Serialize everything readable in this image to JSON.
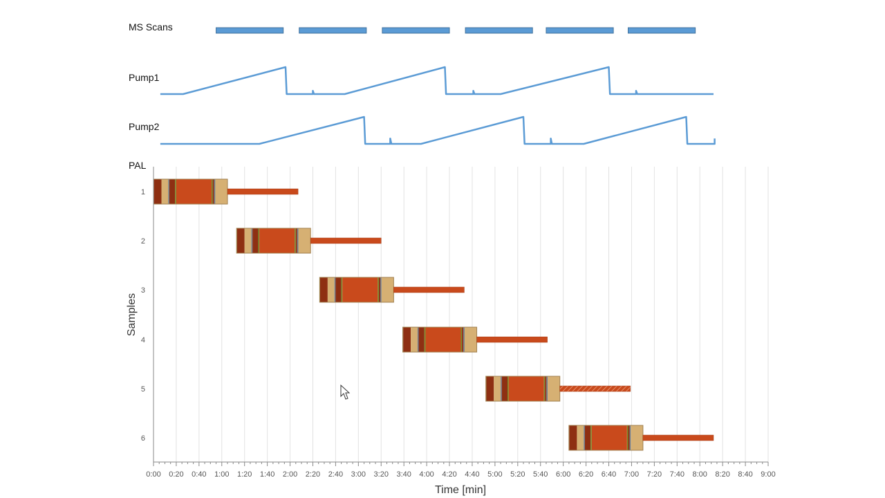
{
  "labels": {
    "ms_scans": "MS Scans",
    "pump1": "Pump1",
    "pump2": "Pump2",
    "pal": "PAL"
  },
  "colors": {
    "line": "#5b9bd5",
    "scan_fill": "#5b9bd5",
    "scan_border": "#41719c",
    "dark_red": "#8e2f12",
    "tan": "#d6b073",
    "orange": "#c94a1c",
    "green": "#7a8c2a",
    "gray": "#6f7b8a",
    "grid": "#e2e2e2",
    "axis": "#888888"
  },
  "chart_data": {
    "type": "gantt",
    "xlabel": "Time [min]",
    "ylabel": "Samples",
    "xlim": [
      0,
      540
    ],
    "x_tick_labels": [
      "0:00",
      "0:20",
      "0:40",
      "1:00",
      "1:20",
      "1:40",
      "2:00",
      "2:20",
      "2:40",
      "3:00",
      "3:20",
      "3:40",
      "4:00",
      "4:20",
      "4:40",
      "5:00",
      "5:20",
      "5:40",
      "6:00",
      "6:20",
      "6:40",
      "7:00",
      "7:20",
      "7:40",
      "8:00",
      "8:20",
      "8:40",
      "9:00"
    ],
    "x_tick_step_seconds": 20,
    "grid": true,
    "ms_scans": [
      [
        55,
        114
      ],
      [
        128,
        187
      ],
      [
        201,
        260
      ],
      [
        274,
        333
      ],
      [
        345,
        404
      ],
      [
        417,
        476
      ]
    ],
    "pump1": {
      "baseline": 0,
      "peak": 1,
      "points": [
        [
          6,
          0
        ],
        [
          26,
          0
        ],
        [
          116,
          1
        ],
        [
          117,
          0
        ],
        [
          140,
          0
        ],
        [
          140,
          0.12
        ],
        [
          141,
          0
        ],
        [
          168,
          0
        ],
        [
          256,
          1
        ],
        [
          257,
          0
        ],
        [
          281,
          0
        ],
        [
          281,
          0.12
        ],
        [
          282,
          0
        ],
        [
          305,
          0
        ],
        [
          400,
          1
        ],
        [
          401,
          0
        ],
        [
          424,
          0
        ],
        [
          424,
          0.12
        ],
        [
          425,
          0
        ],
        [
          492,
          0
        ]
      ]
    },
    "pump2": {
      "baseline": 0,
      "peak": 1,
      "points": [
        [
          6,
          0
        ],
        [
          93,
          0
        ],
        [
          185,
          1
        ],
        [
          186,
          0
        ],
        [
          208,
          0
        ],
        [
          208,
          0.2
        ],
        [
          209,
          0
        ],
        [
          235,
          0
        ],
        [
          325,
          1
        ],
        [
          326,
          0
        ],
        [
          349,
          0
        ],
        [
          349,
          0.2
        ],
        [
          350,
          0
        ],
        [
          378,
          0
        ],
        [
          468,
          1
        ],
        [
          469,
          0
        ],
        [
          493,
          0
        ],
        [
          493,
          0.2
        ]
      ]
    },
    "samples": [
      {
        "label": "1",
        "start": 0,
        "box_end": 65,
        "tail_end": 127,
        "tail_hatched": false
      },
      {
        "label": "2",
        "start": 73,
        "box_end": 138,
        "tail_end": 200,
        "tail_hatched": false
      },
      {
        "label": "3",
        "start": 146,
        "box_end": 211,
        "tail_end": 273,
        "tail_hatched": false
      },
      {
        "label": "4",
        "start": 219,
        "box_end": 284,
        "tail_end": 346,
        "tail_hatched": false
      },
      {
        "label": "5",
        "start": 292,
        "box_end": 357,
        "tail_end": 419,
        "tail_hatched": true
      },
      {
        "label": "6",
        "start": 365,
        "box_end": 430,
        "tail_end": 492,
        "tail_hatched": false
      }
    ],
    "box_segments": [
      {
        "from": 0,
        "to": 0.4,
        "color": "green"
      },
      {
        "from": 0.4,
        "to": 7,
        "color": "dark_red"
      },
      {
        "from": 7,
        "to": 13,
        "color": "tan"
      },
      {
        "from": 13,
        "to": 14,
        "color": "gray"
      },
      {
        "from": 14,
        "to": 19,
        "color": "dark_red"
      },
      {
        "from": 19,
        "to": 20,
        "color": "green"
      },
      {
        "from": 20,
        "to": 51,
        "color": "orange"
      },
      {
        "from": 51,
        "to": 52,
        "color": "green"
      },
      {
        "from": 52,
        "to": 53.2,
        "color": "dark_red"
      },
      {
        "from": 53.2,
        "to": 54.3,
        "color": "gray"
      },
      {
        "from": 54.3,
        "to": 65,
        "color": "tan"
      }
    ]
  }
}
